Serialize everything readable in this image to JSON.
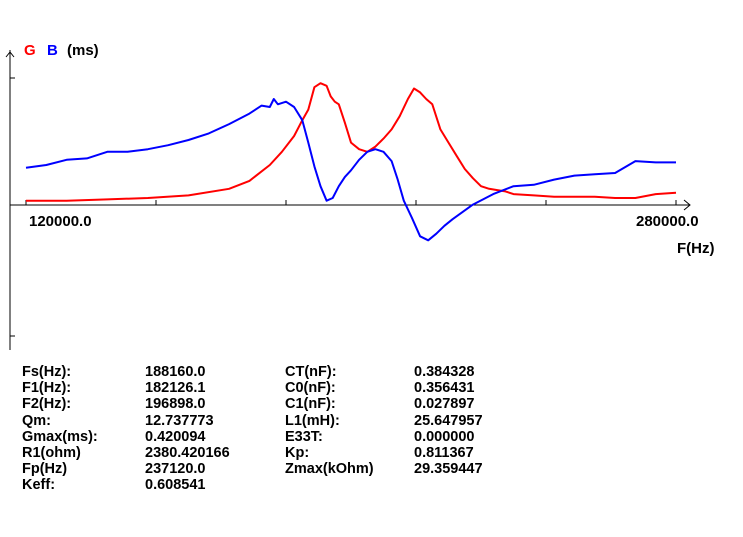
{
  "colors": {
    "G": "#ff0000",
    "B": "#0000ff",
    "axes": "#000000"
  },
  "chart_data": {
    "type": "line",
    "legend": {
      "G_label": "G",
      "B_label": "B",
      "unit": "(ms)"
    },
    "xlabel": "F(Hz)",
    "xlim": [
      120000.0,
      280000.0
    ],
    "x_tick_labels": [
      "120000.0",
      "280000.0"
    ],
    "y_scale": "relative (no numeric tick labels)",
    "grid": false,
    "series": [
      {
        "name": "G",
        "color": "#ff0000",
        "x": [
          120000,
          130000,
          140000,
          150000,
          160000,
          170000,
          175000,
          180000,
          183000,
          186000,
          188000,
          189500,
          191000,
          192500,
          194000,
          195000,
          196000,
          197000,
          198500,
          200000,
          202000,
          204000,
          206000,
          208000,
          210000,
          212000,
          214000,
          215500,
          217000,
          218500,
          220000,
          222000,
          224000,
          226000,
          228000,
          230000,
          232000,
          234000,
          236000,
          238000,
          240000,
          245000,
          250000,
          255000,
          260000,
          265000,
          270000,
          275000,
          280000
        ],
        "y": [
          0.01,
          0.01,
          0.02,
          0.03,
          0.05,
          0.1,
          0.16,
          0.28,
          0.38,
          0.5,
          0.62,
          0.7,
          0.87,
          0.9,
          0.88,
          0.8,
          0.76,
          0.74,
          0.6,
          0.45,
          0.4,
          0.38,
          0.42,
          0.48,
          0.55,
          0.65,
          0.78,
          0.86,
          0.83,
          0.78,
          0.74,
          0.55,
          0.45,
          0.35,
          0.25,
          0.18,
          0.12,
          0.1,
          0.09,
          0.08,
          0.06,
          0.05,
          0.04,
          0.04,
          0.04,
          0.03,
          0.03,
          0.06,
          0.07
        ]
      },
      {
        "name": "B",
        "color": "#0000ff",
        "x": [
          120000,
          125000,
          130000,
          135000,
          140000,
          145000,
          150000,
          155000,
          160000,
          165000,
          170000,
          175000,
          178000,
          180000,
          181000,
          182000,
          184000,
          186000,
          188000,
          189500,
          191000,
          192500,
          194000,
          195500,
          197000,
          198500,
          200000,
          202000,
          204000,
          206000,
          208000,
          210000,
          211500,
          213000,
          215000,
          217000,
          219000,
          221000,
          223000,
          225000,
          230000,
          235000,
          240000,
          245000,
          250000,
          255000,
          260000,
          265000,
          270000,
          275000,
          280000
        ],
        "y": [
          0.26,
          0.28,
          0.32,
          0.33,
          0.38,
          0.38,
          0.4,
          0.43,
          0.47,
          0.52,
          0.59,
          0.67,
          0.73,
          0.72,
          0.78,
          0.74,
          0.76,
          0.72,
          0.62,
          0.45,
          0.27,
          0.12,
          0.01,
          0.03,
          0.12,
          0.19,
          0.24,
          0.32,
          0.38,
          0.4,
          0.38,
          0.31,
          0.17,
          0.01,
          -0.12,
          -0.26,
          -0.29,
          -0.24,
          -0.18,
          -0.13,
          -0.02,
          0.06,
          0.12,
          0.13,
          0.17,
          0.2,
          0.21,
          0.22,
          0.31,
          0.3,
          0.3
        ]
      }
    ]
  },
  "params": {
    "left": [
      {
        "label": "Fs(Hz):",
        "value": "188160.0"
      },
      {
        "label": "F1(Hz):",
        "value": "182126.1"
      },
      {
        "label": "F2(Hz):",
        "value": "196898.0"
      },
      {
        "label": "Qm:",
        "value": "12.737773"
      },
      {
        "label": "Gmax(ms):",
        "value": "0.420094"
      },
      {
        "label": "R1(ohm)",
        "value": "2380.420166"
      },
      {
        "label": "Fp(Hz)",
        "value": "237120.0"
      },
      {
        "label": "Keff:",
        "value": "0.608541"
      }
    ],
    "right": [
      {
        "label": "CT(nF):",
        "value": "0.384328"
      },
      {
        "label": "C0(nF):",
        "value": "0.356431"
      },
      {
        "label": "C1(nF):",
        "value": "0.027897"
      },
      {
        "label": "L1(mH):",
        "value": "25.647957"
      },
      {
        "label": "E33T:",
        "value": "0.000000"
      },
      {
        "label": "Kp:",
        "value": "0.811367"
      },
      {
        "label": "Zmax(kOhm)",
        "value": "29.359447"
      }
    ]
  }
}
